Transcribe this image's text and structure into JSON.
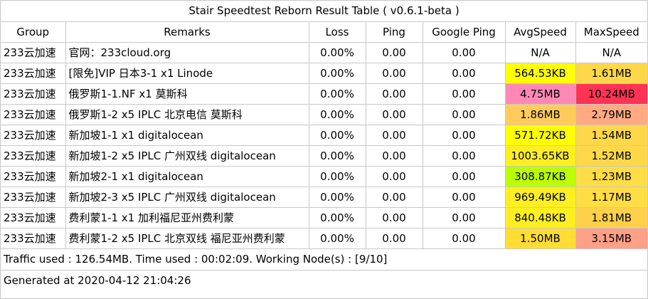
{
  "title": "Stair Speedtest Reborn Result Table ( v0.6.1-beta )",
  "headers": [
    "Group",
    "Remarks",
    "Loss",
    "Ping",
    "Google Ping",
    "AvgSpeed",
    "MaxSpeed"
  ],
  "rows": [
    {
      "group": "233云加速",
      "remarks": "官网：233cloud.org",
      "loss": "0.00%",
      "ping": "0.00",
      "gping": "0.00",
      "avg": "N/A",
      "max": "N/A",
      "avg_color": "#ffffff",
      "max_color": "#ffffff"
    },
    {
      "group": "233云加速",
      "remarks": "[限免]VIP 日本3-1 x1 Linode",
      "loss": "0.00%",
      "ping": "0.00",
      "gping": "0.00",
      "avg": "564.53KB",
      "max": "1.61MB",
      "avg_color": "#ffff00",
      "max_color": "#ffd84a"
    },
    {
      "group": "233云加速",
      "remarks": "俄罗斯1-1.NF x1 莫斯科",
      "loss": "0.00%",
      "ping": "0.00",
      "gping": "0.00",
      "avg": "4.75MB",
      "max": "10.24MB",
      "avg_color": "#ff88b4",
      "max_color": "#ff3355"
    },
    {
      "group": "233云加速",
      "remarks": "俄罗斯1-2 x5 IPLC 北京电信 莫斯科",
      "loss": "0.00%",
      "ping": "0.00",
      "gping": "0.00",
      "avg": "1.86MB",
      "max": "2.79MB",
      "avg_color": "#ffcc5c",
      "max_color": "#ffaa80"
    },
    {
      "group": "233云加速",
      "remarks": "新加坡1-1 x1 digitalocean",
      "loss": "0.00%",
      "ping": "0.00",
      "gping": "0.00",
      "avg": "571.72KB",
      "max": "1.54MB",
      "avg_color": "#ffff00",
      "max_color": "#ffd84a"
    },
    {
      "group": "233云加速",
      "remarks": "新加坡1-2 x5 IPLC 广州双线 digitalocean",
      "loss": "0.00%",
      "ping": "0.00",
      "gping": "0.00",
      "avg": "1003.65KB",
      "max": "1.52MB",
      "avg_color": "#ffee22",
      "max_color": "#ffd84a"
    },
    {
      "group": "233云加速",
      "remarks": "新加坡2-1 x1 digitalocean",
      "loss": "0.00%",
      "ping": "0.00",
      "gping": "0.00",
      "avg": "308.87KB",
      "max": "1.23MB",
      "avg_color": "#bbff00",
      "max_color": "#ffdd44"
    },
    {
      "group": "233云加速",
      "remarks": "新加坡2-3 x5 IPLC 广州双线 digitalocean",
      "loss": "0.00%",
      "ping": "0.00",
      "gping": "0.00",
      "avg": "969.49KB",
      "max": "1.17MB",
      "avg_color": "#ffee22",
      "max_color": "#ffdd44"
    },
    {
      "group": "233云加速",
      "remarks": "费利蒙1-1 x1 加利福尼亚州费利蒙",
      "loss": "0.00%",
      "ping": "0.00",
      "gping": "0.00",
      "avg": "840.48KB",
      "max": "1.81MB",
      "avg_color": "#ffee22",
      "max_color": "#ffd04a"
    },
    {
      "group": "233云加速",
      "remarks": "费利蒙1-2 x5 IPLC 北京双线 福尼亚州费利蒙",
      "loss": "0.00%",
      "ping": "0.00",
      "gping": "0.00",
      "avg": "1.50MB",
      "max": "3.15MB",
      "avg_color": "#ffdd33",
      "max_color": "#ffa088"
    }
  ],
  "footer": {
    "traffic": "Traffic used : 126.54MB. Time used : 00:02:09. Working Node(s) : [9/10]",
    "generated": "Generated at 2020-04-12 21:04:26"
  }
}
